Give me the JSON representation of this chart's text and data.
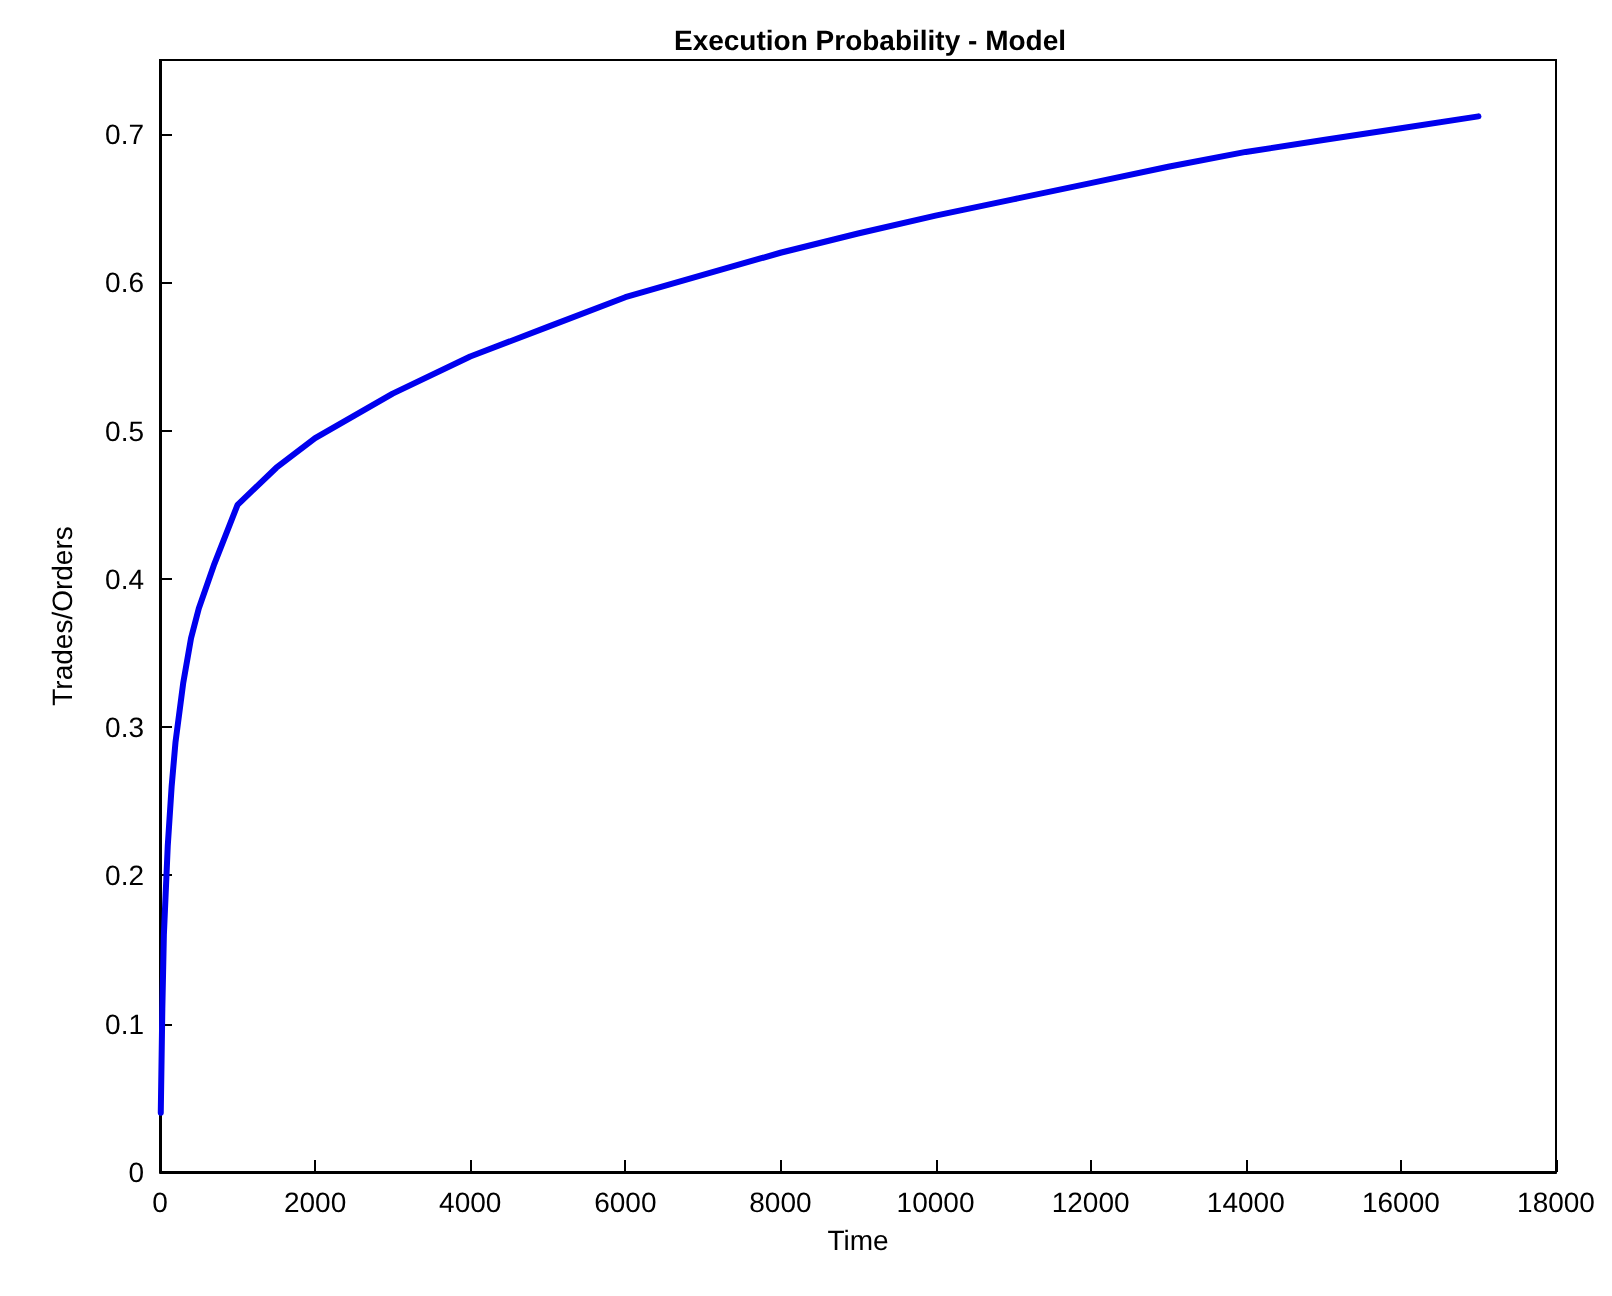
{
  "chart_data": {
    "type": "line",
    "title": "Execution Probability - Model",
    "xlabel": "Time",
    "ylabel": "Trades/Orders",
    "x": [
      10,
      30,
      50,
      100,
      150,
      200,
      300,
      400,
      500,
      700,
      1000,
      1500,
      2000,
      2500,
      3000,
      4000,
      5000,
      6000,
      7000,
      8000,
      9000,
      10000,
      11000,
      12000,
      13000,
      14000,
      15000,
      16000,
      17000
    ],
    "series": [
      {
        "color": "#0000ee",
        "values": [
          0.04,
          0.11,
          0.16,
          0.22,
          0.26,
          0.29,
          0.33,
          0.36,
          0.38,
          0.41,
          0.45,
          0.475,
          0.495,
          0.51,
          0.525,
          0.55,
          0.57,
          0.59,
          0.605,
          0.62,
          0.633,
          0.645,
          0.656,
          0.667,
          0.678,
          0.688,
          0.696,
          0.704,
          0.712
        ]
      }
    ],
    "xlim": [
      0,
      18000
    ],
    "xticks": [
      0,
      2000,
      4000,
      6000,
      8000,
      10000,
      12000,
      14000,
      16000,
      18000
    ],
    "ylim": [
      0,
      0.75
    ],
    "yticks": [
      0,
      0.1,
      0.2,
      0.3,
      0.4,
      0.5,
      0.6,
      0.7
    ],
    "grid": false,
    "marker": "none",
    "line_style": "solid"
  }
}
